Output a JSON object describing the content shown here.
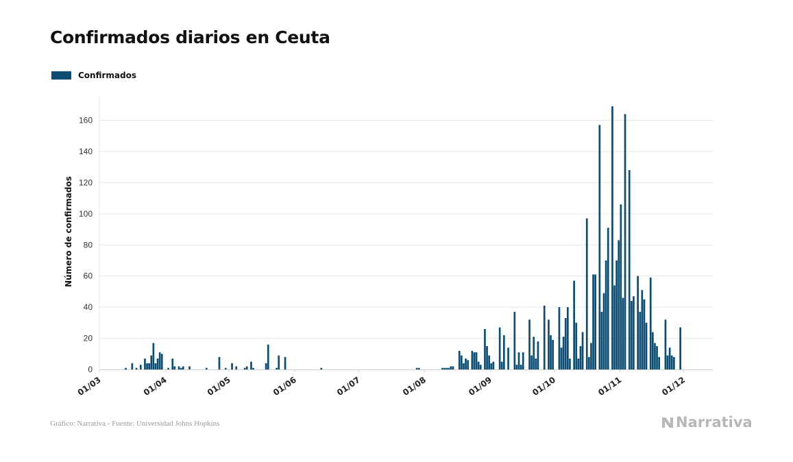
{
  "title": "Confirmados diarios en Ceuta",
  "legend": {
    "label": "Confirmados",
    "color": "#0d4d73"
  },
  "footer": "Gráfico: Narrativa - Fuente: Universidad Johns Hopkins",
  "brand": "Narrativa",
  "chart_data": {
    "type": "bar",
    "title": "Confirmados diarios en Ceuta",
    "xlabel": "",
    "ylabel": "Número de confirmados",
    "ylim": [
      0,
      175
    ],
    "yticks": [
      0,
      20,
      40,
      60,
      80,
      100,
      120,
      140,
      160
    ],
    "xtick_labels": [
      "01/03",
      "01/04",
      "01/05",
      "01/06",
      "01/07",
      "01/08",
      "01/09",
      "01/10",
      "01/11",
      "01/12"
    ],
    "grid": true,
    "legend_position": "top-left",
    "start_date": "01/03",
    "series": [
      {
        "name": "Confirmados",
        "color": "#0d4d73",
        "points": [
          [
            "13/03",
            1
          ],
          [
            "16/03",
            4
          ],
          [
            "18/03",
            1
          ],
          [
            "20/03",
            3
          ],
          [
            "22/03",
            7
          ],
          [
            "23/03",
            4
          ],
          [
            "24/03",
            4
          ],
          [
            "25/03",
            9
          ],
          [
            "26/03",
            17
          ],
          [
            "27/03",
            4
          ],
          [
            "28/03",
            7
          ],
          [
            "29/03",
            11
          ],
          [
            "30/03",
            10
          ],
          [
            "02/04",
            1
          ],
          [
            "04/04",
            7
          ],
          [
            "05/04",
            2
          ],
          [
            "07/04",
            2
          ],
          [
            "08/04",
            1
          ],
          [
            "09/04",
            2
          ],
          [
            "12/04",
            2
          ],
          [
            "20/04",
            1
          ],
          [
            "26/04",
            8
          ],
          [
            "29/04",
            1
          ],
          [
            "02/05",
            4
          ],
          [
            "04/05",
            2
          ],
          [
            "08/05",
            1
          ],
          [
            "09/05",
            2
          ],
          [
            "11/05",
            5
          ],
          [
            "12/05",
            1
          ],
          [
            "18/05",
            4
          ],
          [
            "19/05",
            16
          ],
          [
            "23/05",
            1
          ],
          [
            "24/05",
            9
          ],
          [
            "27/05",
            8
          ],
          [
            "13/06",
            1
          ],
          [
            "28/07",
            1
          ],
          [
            "29/07",
            1
          ],
          [
            "09/08",
            1
          ],
          [
            "10/08",
            1
          ],
          [
            "11/08",
            1
          ],
          [
            "12/08",
            1
          ],
          [
            "13/08",
            2
          ],
          [
            "14/08",
            2
          ],
          [
            "17/08",
            12
          ],
          [
            "18/08",
            9
          ],
          [
            "19/08",
            4
          ],
          [
            "20/08",
            7
          ],
          [
            "21/08",
            6
          ],
          [
            "23/08",
            12
          ],
          [
            "24/08",
            11
          ],
          [
            "25/08",
            11
          ],
          [
            "26/08",
            5
          ],
          [
            "27/08",
            3
          ],
          [
            "29/08",
            26
          ],
          [
            "30/08",
            15
          ],
          [
            "31/08",
            9
          ],
          [
            "01/09",
            4
          ],
          [
            "02/09",
            5
          ],
          [
            "05/09",
            27
          ],
          [
            "06/09",
            5
          ],
          [
            "07/09",
            22
          ],
          [
            "09/09",
            14
          ],
          [
            "12/09",
            37
          ],
          [
            "13/09",
            3
          ],
          [
            "14/09",
            11
          ],
          [
            "15/09",
            3
          ],
          [
            "16/09",
            11
          ],
          [
            "19/09",
            32
          ],
          [
            "20/09",
            9
          ],
          [
            "21/09",
            21
          ],
          [
            "22/09",
            7
          ],
          [
            "23/09",
            18
          ],
          [
            "26/09",
            41
          ],
          [
            "28/09",
            32
          ],
          [
            "29/09",
            22
          ],
          [
            "30/09",
            19
          ],
          [
            "03/10",
            40
          ],
          [
            "04/10",
            14
          ],
          [
            "05/10",
            21
          ],
          [
            "06/10",
            33
          ],
          [
            "07/10",
            40
          ],
          [
            "08/10",
            7
          ],
          [
            "10/10",
            57
          ],
          [
            "11/10",
            30
          ],
          [
            "12/10",
            7
          ],
          [
            "13/10",
            15
          ],
          [
            "14/10",
            24
          ],
          [
            "16/10",
            97
          ],
          [
            "17/10",
            8
          ],
          [
            "18/10",
            17
          ],
          [
            "19/10",
            61
          ],
          [
            "20/10",
            61
          ],
          [
            "22/10",
            157
          ],
          [
            "23/10",
            37
          ],
          [
            "24/10",
            49
          ],
          [
            "25/10",
            70
          ],
          [
            "26/10",
            91
          ],
          [
            "28/10",
            169
          ],
          [
            "29/10",
            54
          ],
          [
            "30/10",
            70
          ],
          [
            "31/10",
            83
          ],
          [
            "01/11",
            106
          ],
          [
            "02/11",
            46
          ],
          [
            "03/11",
            164
          ],
          [
            "05/11",
            128
          ],
          [
            "06/11",
            44
          ],
          [
            "07/11",
            47
          ],
          [
            "09/11",
            60
          ],
          [
            "10/11",
            37
          ],
          [
            "11/11",
            51
          ],
          [
            "12/11",
            45
          ],
          [
            "13/11",
            30
          ],
          [
            "15/11",
            59
          ],
          [
            "16/11",
            24
          ],
          [
            "17/11",
            17
          ],
          [
            "18/11",
            15
          ],
          [
            "19/11",
            8
          ],
          [
            "22/11",
            32
          ],
          [
            "23/11",
            9
          ],
          [
            "24/11",
            14
          ],
          [
            "25/11",
            9
          ],
          [
            "26/11",
            8
          ],
          [
            "29/11",
            27
          ]
        ]
      }
    ]
  }
}
